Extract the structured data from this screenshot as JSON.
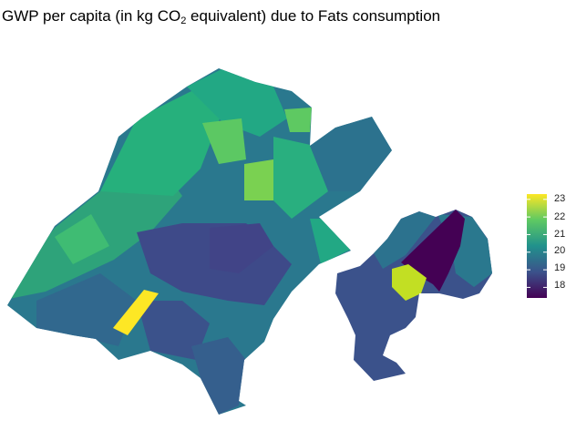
{
  "title": {
    "prefix": "GWP per capita (in kg CO",
    "subscript": "2",
    "suffix": " equivalent) due to Fats consumption"
  },
  "legend": {
    "ticks": [
      "23",
      "22",
      "21",
      "20",
      "19",
      "18"
    ],
    "min": 17.4,
    "max": 23.3,
    "palette": [
      "#440154",
      "#3b528b",
      "#21918c",
      "#5ec962",
      "#fde725"
    ]
  }
}
